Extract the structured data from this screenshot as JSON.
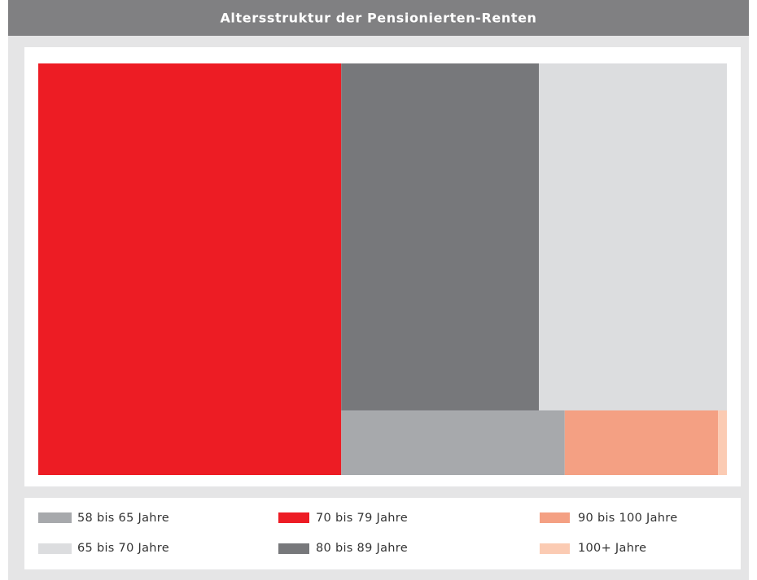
{
  "chart_data": {
    "type": "treemap",
    "title": "Altersstruktur der Pensionierten-Renten",
    "series": [
      {
        "name": "70 bis 79 Jahre",
        "color": "#ed1c24",
        "values": [
          44.0
        ]
      },
      {
        "name": "80 bis 89 Jahre",
        "color": "#77787b",
        "values": [
          24.2
        ]
      },
      {
        "name": "65 bis 70 Jahre",
        "color": "#dcdddf",
        "values": [
          23.0
        ]
      },
      {
        "name": "58 bis 65 Jahre",
        "color": "#a7a9ac",
        "values": [
          5.1
        ]
      },
      {
        "name": "90 bis 100 Jahre",
        "color": "#f4a083",
        "values": [
          3.5
        ]
      },
      {
        "name": "100+ Jahre",
        "color": "#fbcbb3",
        "values": [
          0.2
        ]
      }
    ]
  }
}
